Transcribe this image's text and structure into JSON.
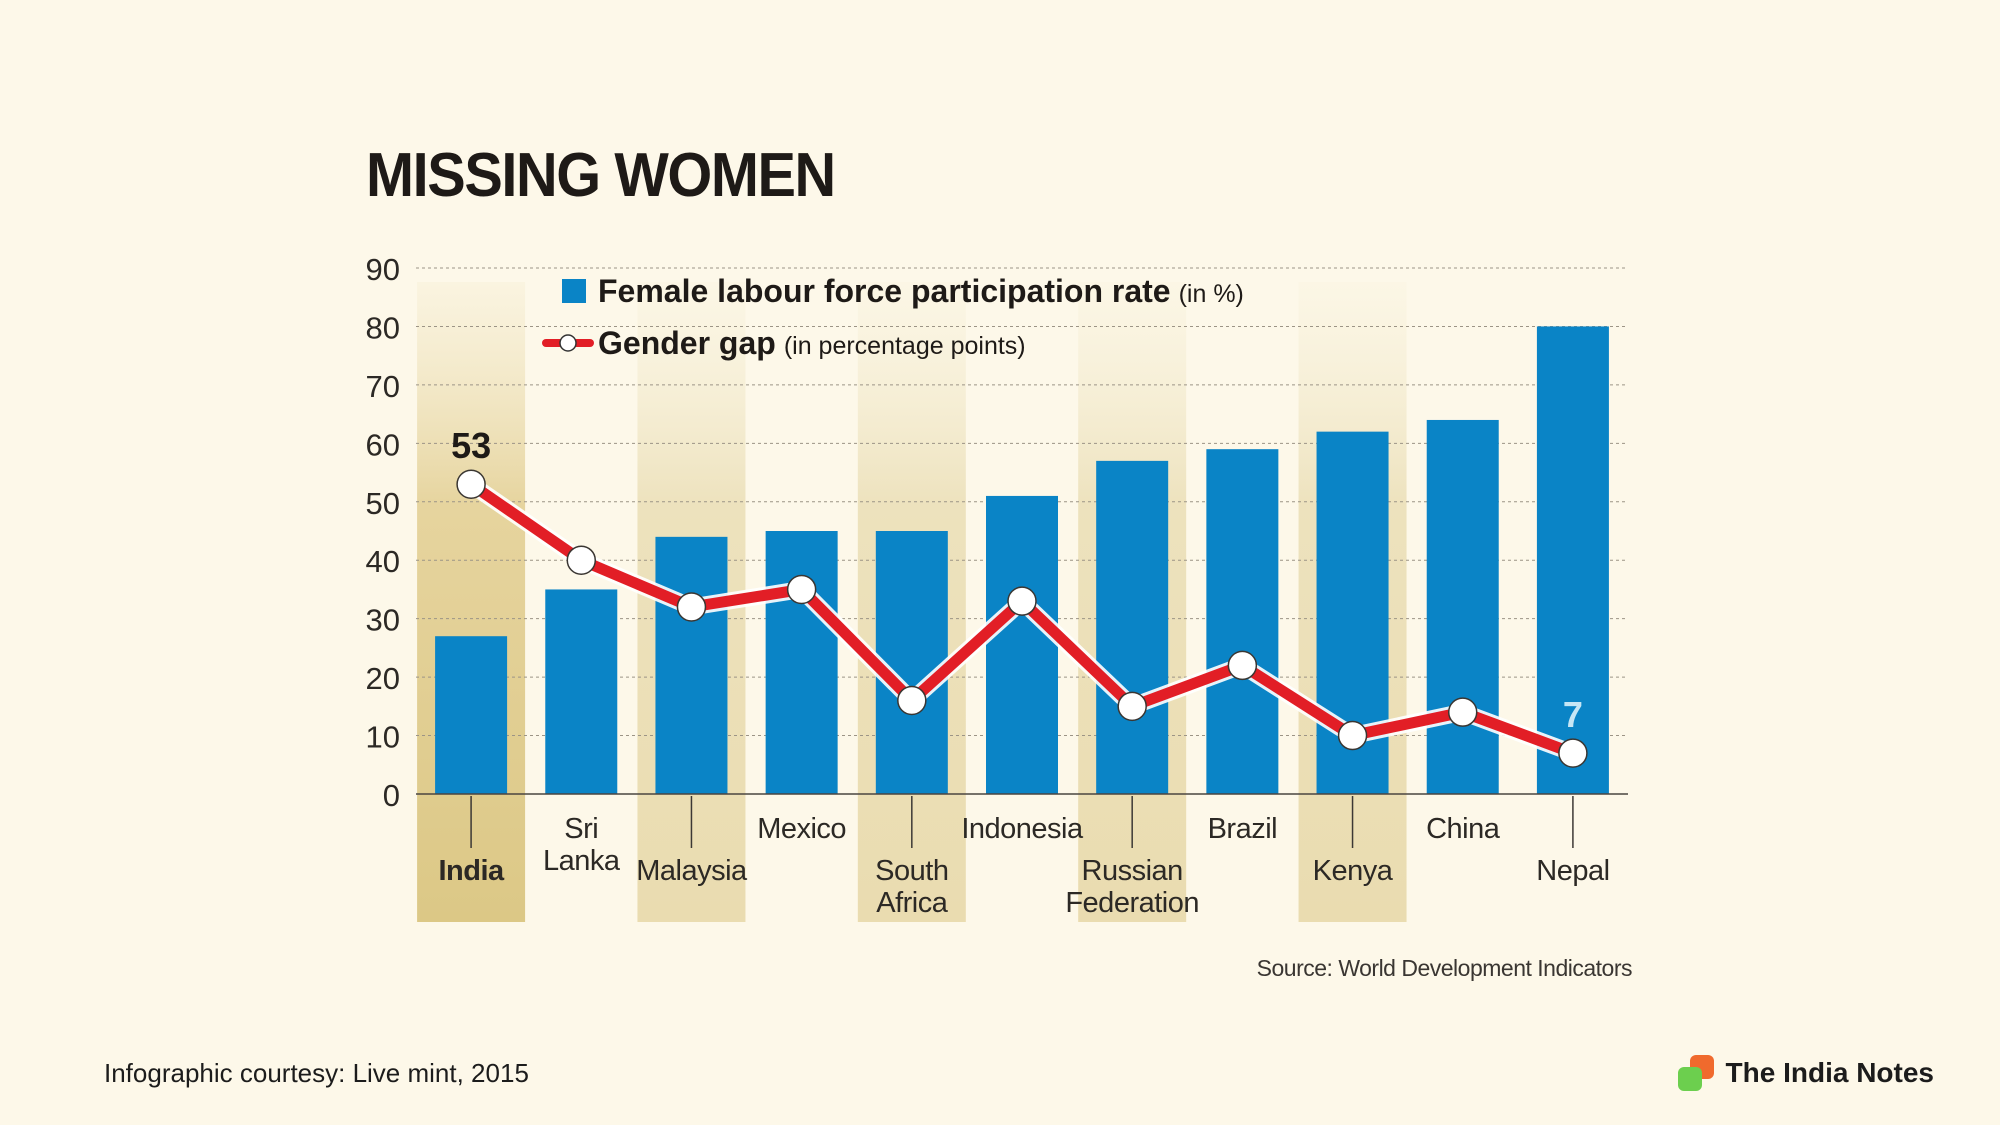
{
  "chart_data": {
    "type": "bar",
    "title": "MISSING WOMEN",
    "categories": [
      "India",
      "Sri Lanka",
      "Malaysia",
      "Mexico",
      "South Africa",
      "Indonesia",
      "Russian Federation",
      "Brazil",
      "Kenya",
      "China",
      "Nepal"
    ],
    "series": [
      {
        "name": "Female labour force participation rate",
        "name_unit": "(in %)",
        "type": "bar",
        "color": "#0a84c6",
        "values": [
          27,
          35,
          44,
          45,
          45,
          51,
          57,
          59,
          62,
          64,
          80
        ]
      },
      {
        "name": "Gender gap",
        "name_unit": "(in percentage points)",
        "type": "line",
        "color": "#e21e26",
        "values": [
          53,
          40,
          32,
          35,
          16,
          33,
          15,
          22,
          10,
          14,
          7
        ]
      }
    ],
    "data_labels": [
      {
        "category": "India",
        "text": "53"
      },
      {
        "category": "Nepal",
        "text": "7"
      }
    ],
    "highlighted_categories": [
      "India",
      "Malaysia",
      "South Africa",
      "Russian Federation",
      "Kenya"
    ],
    "bold_category": "India",
    "yticks": [
      "0",
      "10",
      "20",
      "30",
      "40",
      "50",
      "60",
      "70",
      "80",
      "90"
    ],
    "ylim": [
      0,
      90
    ],
    "grid": "dashed-horizontal",
    "legend_position": "top-left"
  },
  "source": "Source: World Development Indicators",
  "footer": {
    "courtesy": "Infographic courtesy: Live mint, 2015",
    "brand": "The India Notes"
  }
}
